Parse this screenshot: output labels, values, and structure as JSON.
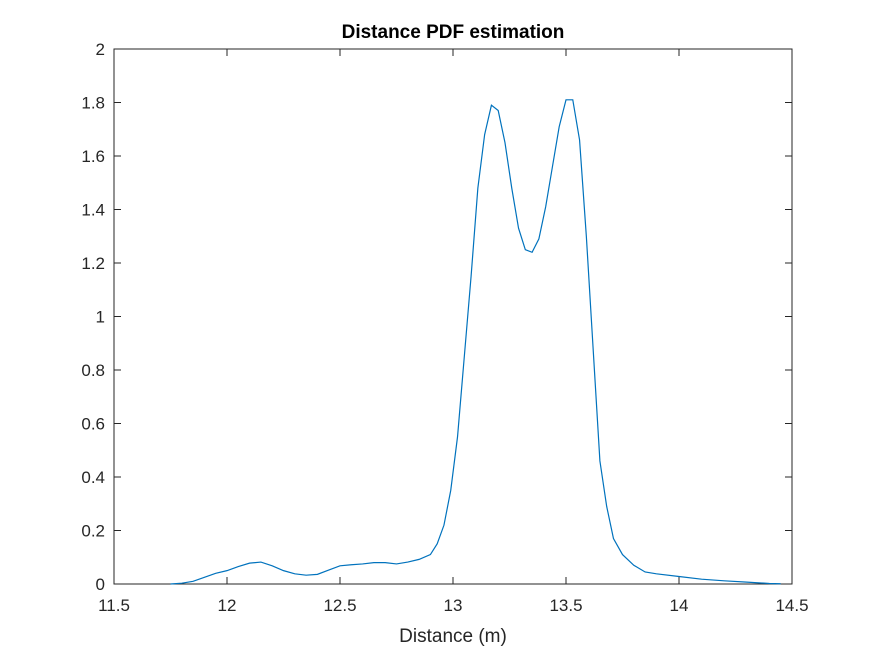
{
  "chart_data": {
    "type": "line",
    "title": "Distance PDF estimation",
    "xlabel": "Distance (m)",
    "ylabel": "",
    "xlim": [
      11.5,
      14.5
    ],
    "ylim": [
      0,
      2
    ],
    "xticks": [
      "11.5",
      "12",
      "12.5",
      "13",
      "13.5",
      "14",
      "14.5"
    ],
    "yticks": [
      "0",
      "0.2",
      "0.4",
      "0.6",
      "0.8",
      "1",
      "1.2",
      "1.4",
      "1.6",
      "1.8",
      "2"
    ],
    "grid": false,
    "line_color": "#0072BD",
    "series": [
      {
        "x": [
          11.75,
          11.8,
          11.85,
          11.9,
          11.95,
          12.0,
          12.05,
          12.1,
          12.15,
          12.2,
          12.25,
          12.3,
          12.35,
          12.4,
          12.45,
          12.5,
          12.55,
          12.6,
          12.65,
          12.7,
          12.75,
          12.8,
          12.85,
          12.9,
          12.93,
          12.96,
          12.99,
          13.02,
          13.05,
          13.08,
          13.11,
          13.14,
          13.17,
          13.2,
          13.23,
          13.26,
          13.29,
          13.32,
          13.35,
          13.38,
          13.41,
          13.44,
          13.47,
          13.5,
          13.53,
          13.56,
          13.59,
          13.62,
          13.65,
          13.68,
          13.71,
          13.75,
          13.8,
          13.85,
          13.9,
          14.0,
          14.1,
          14.2,
          14.3,
          14.4,
          14.45
        ],
        "y": [
          0.0,
          0.003,
          0.01,
          0.025,
          0.04,
          0.05,
          0.065,
          0.078,
          0.082,
          0.068,
          0.05,
          0.038,
          0.033,
          0.036,
          0.052,
          0.068,
          0.072,
          0.075,
          0.08,
          0.08,
          0.075,
          0.082,
          0.092,
          0.11,
          0.15,
          0.22,
          0.35,
          0.55,
          0.85,
          1.15,
          1.48,
          1.68,
          1.79,
          1.77,
          1.65,
          1.48,
          1.33,
          1.25,
          1.24,
          1.29,
          1.41,
          1.56,
          1.71,
          1.81,
          1.81,
          1.66,
          1.3,
          0.88,
          0.46,
          0.29,
          0.17,
          0.11,
          0.07,
          0.045,
          0.038,
          0.028,
          0.018,
          0.012,
          0.007,
          0.002,
          0.001
        ]
      }
    ]
  }
}
